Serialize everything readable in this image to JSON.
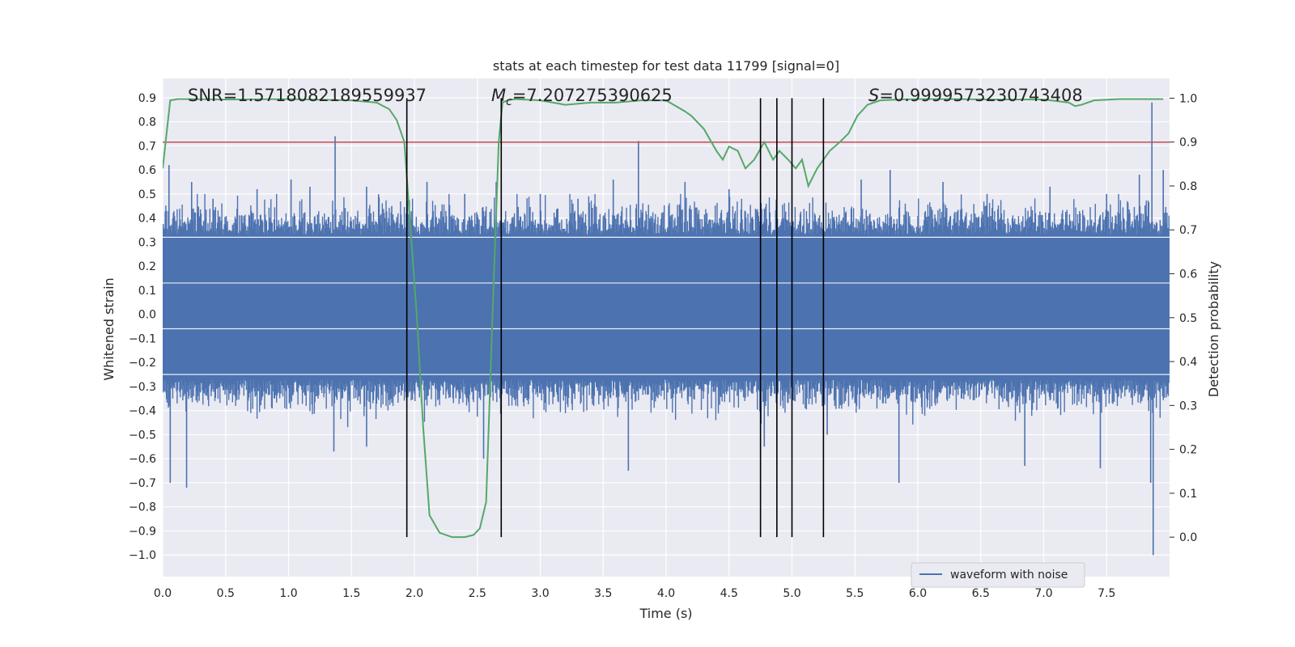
{
  "chart_data": {
    "type": "line",
    "title": "stats at each timestep for test data 11799 [signal=0]",
    "xlabel": "Time (s)",
    "ylabel_left": "Whitened strain",
    "ylabel_right": "Detection probability",
    "xlim": [
      0.0,
      8.0
    ],
    "ylim_left": [
      -1.09,
      0.98
    ],
    "ylim_right": [
      -0.09,
      1.045
    ],
    "x_ticks": [
      0.0,
      0.5,
      1.0,
      1.5,
      2.0,
      2.5,
      3.0,
      3.5,
      4.0,
      4.5,
      5.0,
      5.5,
      6.0,
      6.5,
      7.0,
      7.5
    ],
    "x_tick_labels": [
      "0.0",
      "0.5",
      "1.0",
      "1.5",
      "2.0",
      "2.5",
      "3.0",
      "3.5",
      "4.0",
      "4.5",
      "5.0",
      "5.5",
      "6.0",
      "6.5",
      "7.0",
      "7.5"
    ],
    "y_left_ticks": [
      0.9,
      0.8,
      0.7,
      0.6,
      0.5,
      0.4,
      0.3,
      0.2,
      0.1,
      0.0,
      -0.1,
      -0.2,
      -0.3,
      -0.4,
      -0.5,
      -0.6,
      -0.7,
      -0.8,
      -0.9,
      -1.0
    ],
    "y_left_tick_labels": [
      "0.9",
      "0.8",
      "0.7",
      "0.6",
      "0.5",
      "0.4",
      "0.3",
      "0.2",
      "0.1",
      "0.0",
      "−0.1",
      "−0.2",
      "−0.3",
      "−0.4",
      "−0.5",
      "−0.6",
      "−0.7",
      "−0.8",
      "−0.9",
      "−1.0"
    ],
    "y_right_ticks": [
      1.0,
      0.9,
      0.8,
      0.7,
      0.6,
      0.5,
      0.4,
      0.3,
      0.2,
      0.1,
      0.0
    ],
    "y_right_tick_labels": [
      "1.0",
      "0.9",
      "0.8",
      "0.7",
      "0.6",
      "0.5",
      "0.4",
      "0.3",
      "0.2",
      "0.1",
      "0.0"
    ],
    "annotations": {
      "snr": "SNR=1.5718082189559937",
      "mc_symbol": "M",
      "mc_sub": "c",
      "mc_value": "=7.207275390625",
      "s_symbol": "S",
      "s_value": "=0.9999573230743408"
    },
    "legend": {
      "entries": [
        "waveform with noise"
      ],
      "location": "lower-right"
    },
    "threshold": {
      "value": 0.9,
      "axis": "right",
      "color": "#c44e52"
    },
    "vertical_markers_x": [
      1.94,
      2.69,
      4.75,
      4.88,
      5.0,
      5.25
    ],
    "waveform": {
      "name": "waveform with noise",
      "color": "#4c72b0",
      "x_range": [
        0.0,
        8.0
      ],
      "sample_count": 1600,
      "core_band": [
        -0.27,
        0.33
      ],
      "spikes": [
        {
          "x": 0.05,
          "y": 0.62
        },
        {
          "x": 0.06,
          "y": -0.7
        },
        {
          "x": 0.19,
          "y": -0.72
        },
        {
          "x": 0.23,
          "y": 0.55
        },
        {
          "x": 0.4,
          "y": 0.48
        },
        {
          "x": 0.75,
          "y": 0.52
        },
        {
          "x": 1.02,
          "y": 0.56
        },
        {
          "x": 1.17,
          "y": 0.53
        },
        {
          "x": 1.37,
          "y": 0.74
        },
        {
          "x": 1.36,
          "y": -0.57
        },
        {
          "x": 1.62,
          "y": 0.53
        },
        {
          "x": 1.62,
          "y": -0.55
        },
        {
          "x": 1.82,
          "y": 0.45
        },
        {
          "x": 2.1,
          "y": 0.55
        },
        {
          "x": 2.4,
          "y": 0.5
        },
        {
          "x": 2.55,
          "y": -0.6
        },
        {
          "x": 2.65,
          "y": 0.55
        },
        {
          "x": 3.0,
          "y": 0.5
        },
        {
          "x": 3.3,
          "y": 0.48
        },
        {
          "x": 3.58,
          "y": 0.56
        },
        {
          "x": 3.7,
          "y": -0.65
        },
        {
          "x": 3.78,
          "y": 0.72
        },
        {
          "x": 4.15,
          "y": 0.55
        },
        {
          "x": 4.5,
          "y": 0.52
        },
        {
          "x": 4.78,
          "y": -0.55
        },
        {
          "x": 5.28,
          "y": -0.5
        },
        {
          "x": 5.55,
          "y": 0.56
        },
        {
          "x": 5.78,
          "y": 0.6
        },
        {
          "x": 5.85,
          "y": -0.7
        },
        {
          "x": 6.2,
          "y": 0.55
        },
        {
          "x": 6.55,
          "y": 0.5
        },
        {
          "x": 6.85,
          "y": -0.63
        },
        {
          "x": 7.05,
          "y": 0.53
        },
        {
          "x": 7.5,
          "y": 0.5
        },
        {
          "x": 7.45,
          "y": -0.64
        },
        {
          "x": 7.76,
          "y": 0.58
        },
        {
          "x": 7.85,
          "y": -0.7
        },
        {
          "x": 7.86,
          "y": 0.88
        },
        {
          "x": 7.87,
          "y": -1.0
        },
        {
          "x": 7.95,
          "y": 0.6
        }
      ]
    },
    "probability": {
      "name": "detection probability",
      "color": "#55a868",
      "x": [
        0.0,
        0.06,
        0.12,
        0.2,
        0.5,
        1.0,
        1.5,
        1.7,
        1.8,
        1.86,
        1.92,
        1.97,
        2.02,
        2.07,
        2.12,
        2.2,
        2.3,
        2.4,
        2.47,
        2.52,
        2.57,
        2.62,
        2.67,
        2.7,
        2.74,
        2.8,
        3.0,
        3.2,
        3.4,
        3.6,
        3.8,
        4.0,
        4.15,
        4.2,
        4.3,
        4.4,
        4.45,
        4.5,
        4.57,
        4.63,
        4.7,
        4.78,
        4.85,
        4.9,
        4.97,
        5.03,
        5.08,
        5.13,
        5.2,
        5.3,
        5.38,
        5.45,
        5.52,
        5.6,
        5.7,
        5.85,
        6.0,
        6.3,
        6.6,
        7.0,
        7.2,
        7.25,
        7.3,
        7.4,
        7.6,
        7.8,
        7.95
      ],
      "y": [
        0.84,
        0.995,
        0.998,
        0.998,
        0.997,
        0.998,
        0.995,
        0.99,
        0.975,
        0.95,
        0.9,
        0.7,
        0.5,
        0.25,
        0.05,
        0.01,
        0.0,
        0.0,
        0.005,
        0.02,
        0.08,
        0.5,
        0.9,
        0.99,
        0.995,
        0.998,
        0.995,
        0.985,
        0.99,
        0.99,
        0.995,
        0.995,
        0.97,
        0.96,
        0.93,
        0.88,
        0.86,
        0.89,
        0.88,
        0.84,
        0.86,
        0.9,
        0.86,
        0.88,
        0.86,
        0.84,
        0.86,
        0.8,
        0.84,
        0.88,
        0.9,
        0.92,
        0.96,
        0.985,
        0.995,
        0.997,
        0.998,
        0.998,
        0.997,
        0.997,
        0.99,
        0.982,
        0.985,
        0.995,
        0.998,
        0.998,
        0.998
      ]
    }
  }
}
